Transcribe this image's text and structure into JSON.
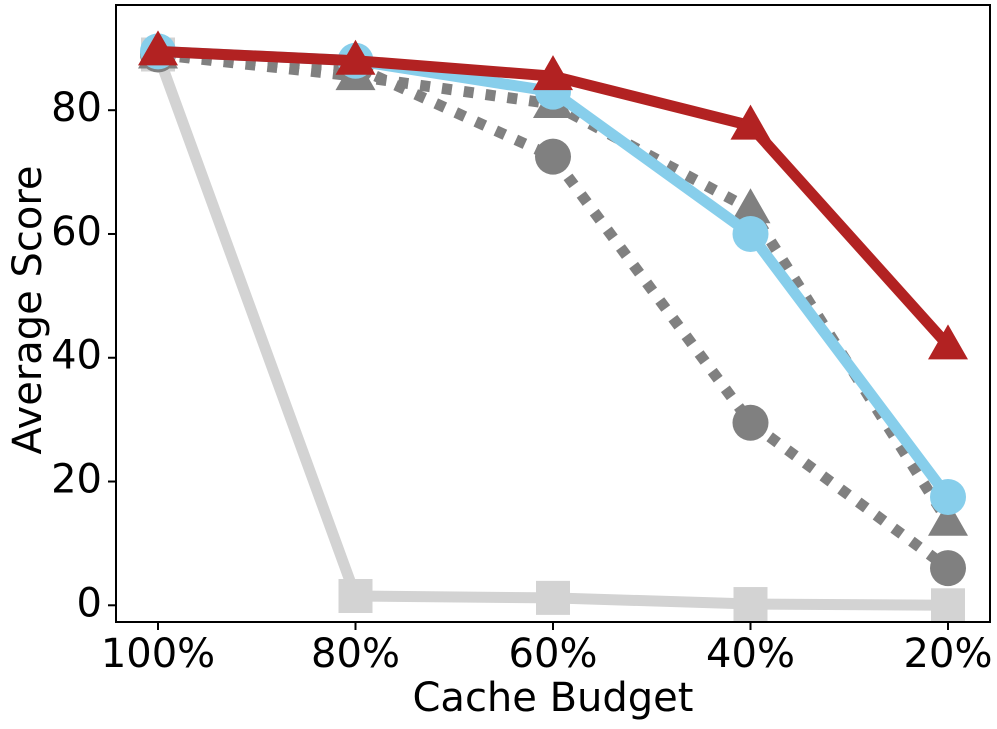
{
  "chart_data": {
    "type": "line",
    "x_label": "Cache Budget",
    "y_label": "Average Score",
    "categories": [
      "100%",
      "80%",
      "60%",
      "40%",
      "20%"
    ],
    "ylim": [
      -2.7,
      97
    ],
    "yticks": [
      0,
      20,
      40,
      60,
      80
    ],
    "series": [
      {
        "color": "#d3d3d3",
        "marker": "square",
        "dashed": false,
        "values": [
          89,
          1.5,
          1.2,
          0.2,
          0
        ]
      },
      {
        "color": "#808080",
        "marker": "circle",
        "dashed": true,
        "values": [
          89,
          87,
          72.5,
          29.5,
          6
        ]
      },
      {
        "color": "#808080",
        "marker": "triangle",
        "dashed": true,
        "values": [
          89,
          85.5,
          81,
          64,
          13.5
        ]
      },
      {
        "color": "#87ceeb",
        "marker": "circle",
        "dashed": false,
        "values": [
          89.5,
          88,
          83,
          60,
          17.5
        ]
      },
      {
        "color": "#b22222",
        "marker": "triangle",
        "dashed": false,
        "values": [
          89.5,
          88,
          85.5,
          77.5,
          42
        ]
      }
    ]
  }
}
